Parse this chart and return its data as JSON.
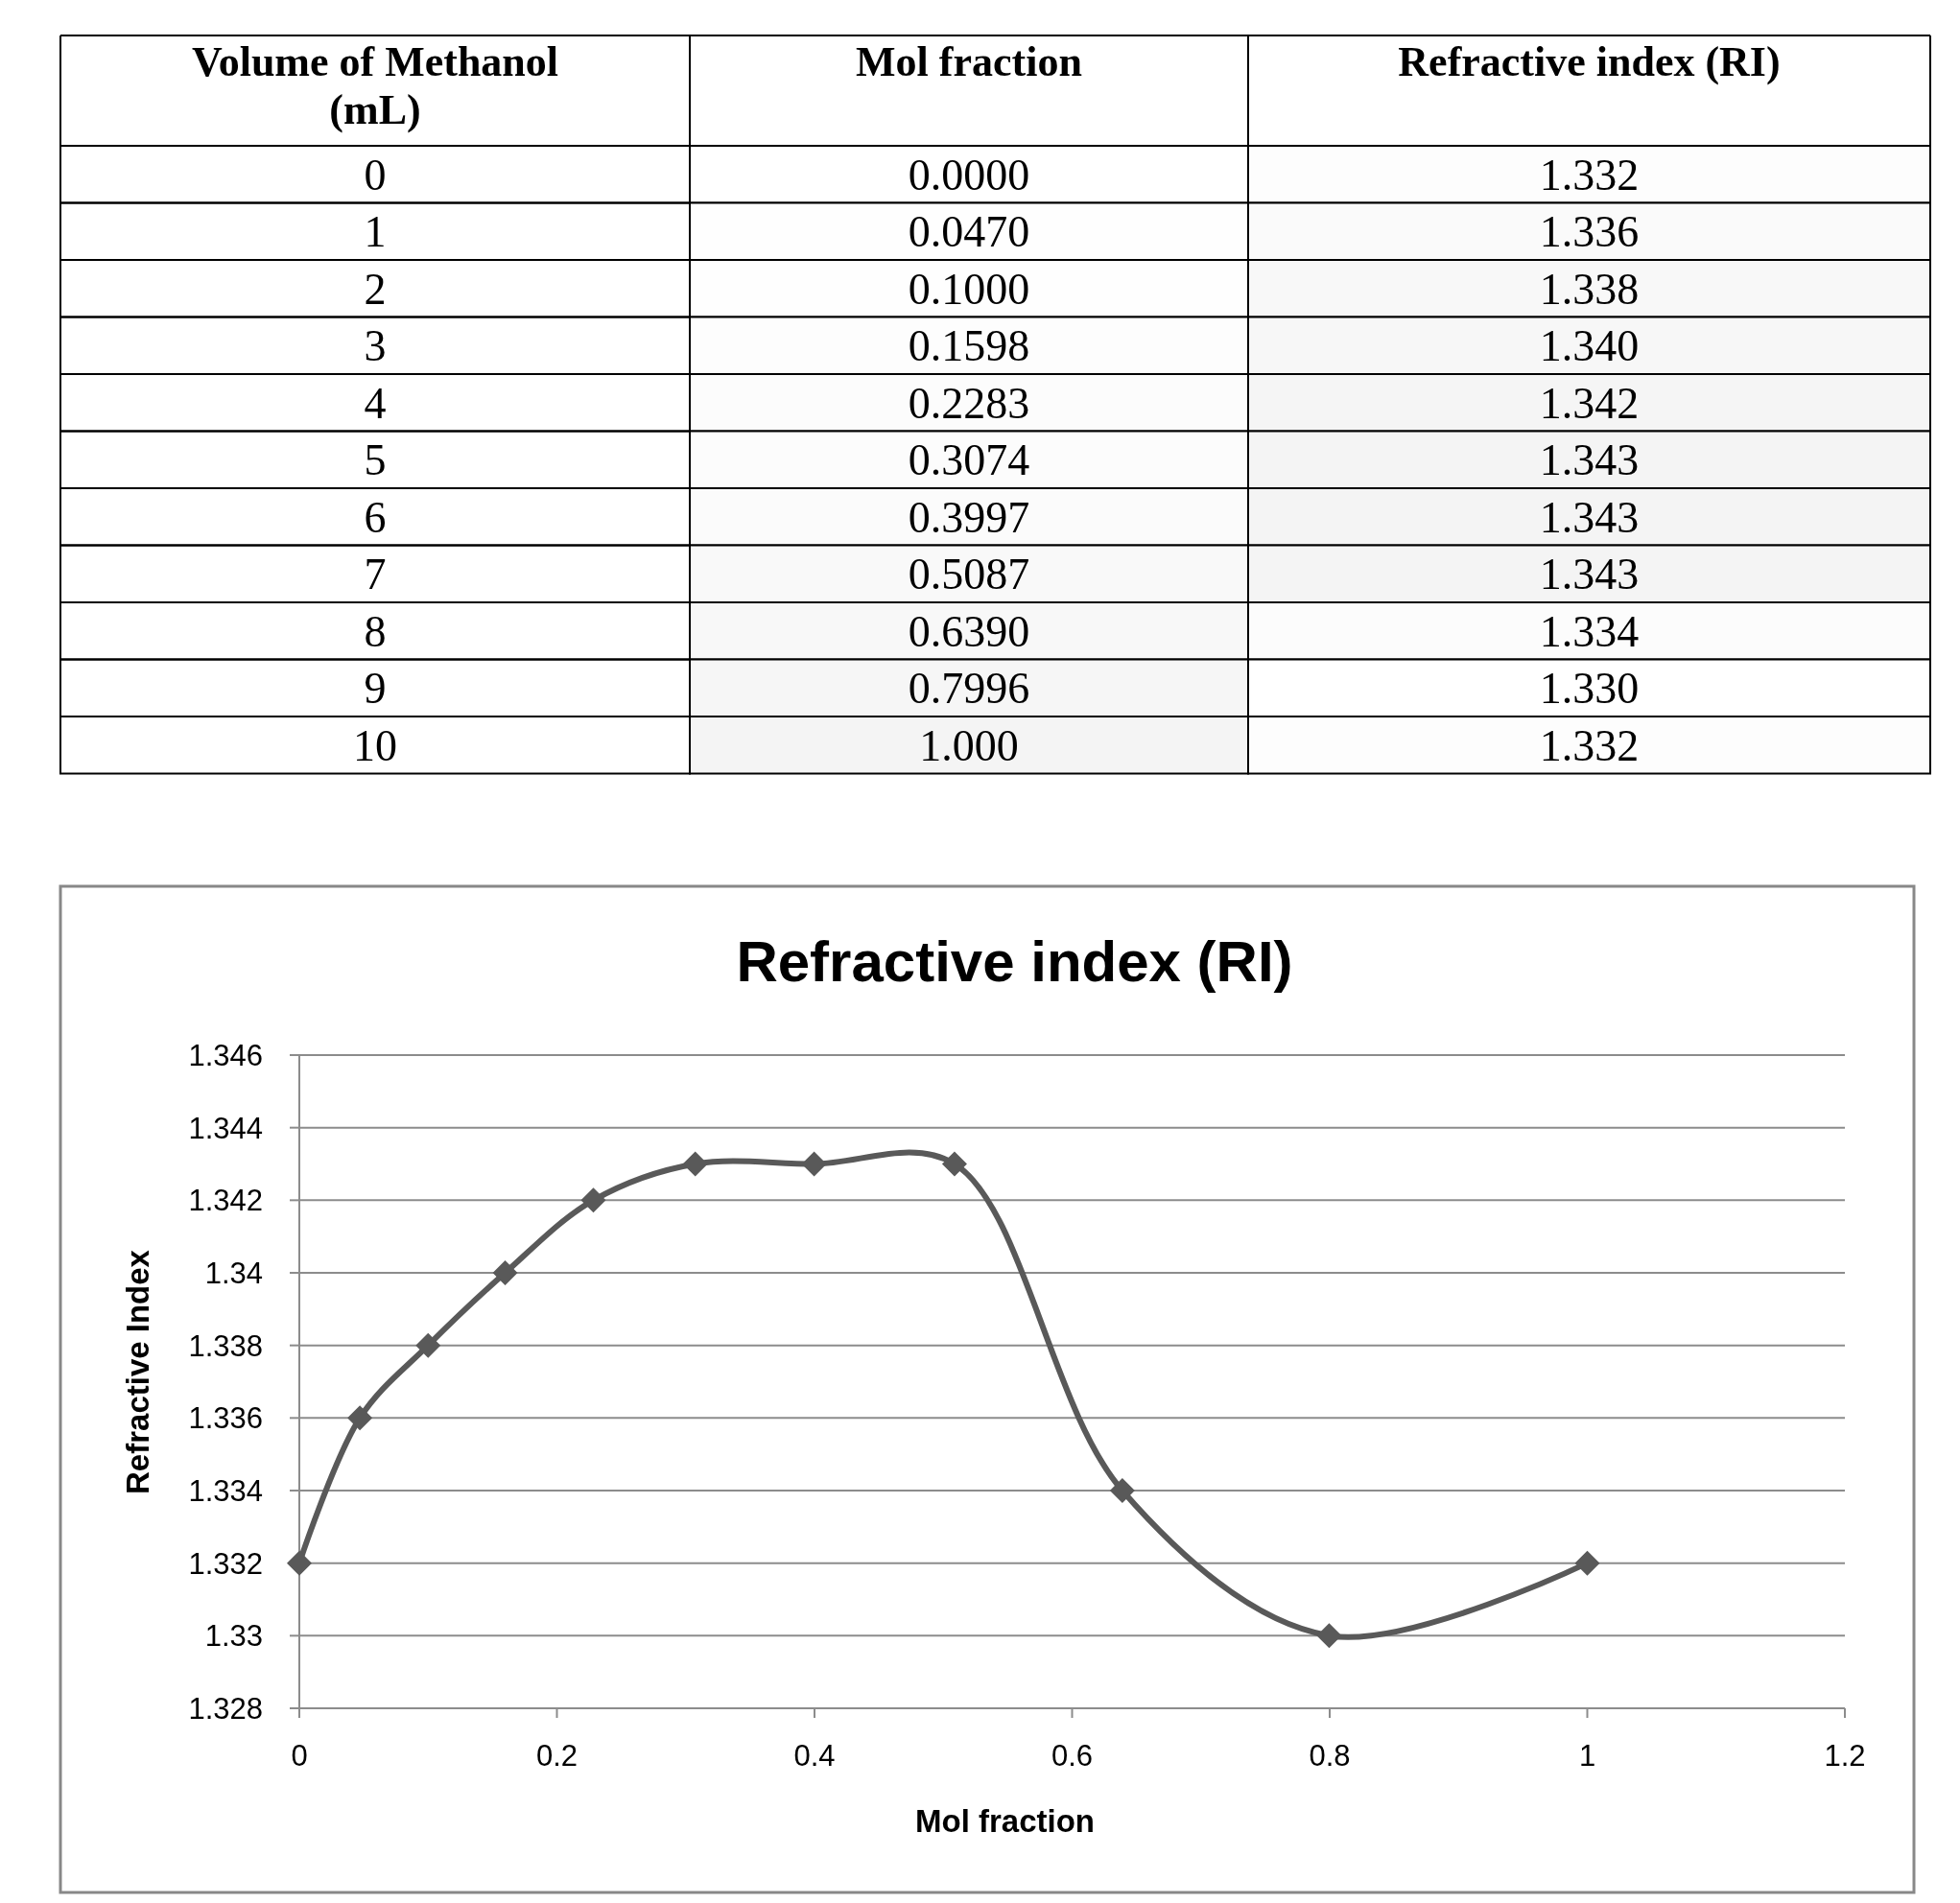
{
  "chart_data": [
    {
      "type": "heatmap",
      "ylabel": "Volume of Methanol (mL)",
      "categories": [
        "Mol fraction",
        "Refractive index (RI)"
      ],
      "y_categories": [
        "0",
        "1",
        "2",
        "3",
        "4",
        "5",
        "6",
        "7",
        "8",
        "9",
        "10"
      ],
      "cells": [
        [
          0,
          1.332
        ],
        [
          0.047,
          1.336
        ],
        [
          0.1,
          1.338
        ],
        [
          0.1598,
          1.34
        ],
        [
          0.2283,
          1.342
        ],
        [
          0.3074,
          1.343
        ],
        [
          0.3997,
          1.343
        ],
        [
          0.5087,
          1.343
        ],
        [
          0.639,
          1.334
        ],
        [
          0.7996,
          1.33
        ],
        [
          1,
          1.332
        ]
      ],
      "cell_labels": [
        [
          "0.0000",
          "1.332"
        ],
        [
          "0.0470",
          "1.336"
        ],
        [
          "0.1000",
          "1.338"
        ],
        [
          "0.1598",
          "1.340"
        ],
        [
          "0.2283",
          "1.342"
        ],
        [
          "0.3074",
          "1.343"
        ],
        [
          "0.3997",
          "1.343"
        ],
        [
          "0.5087",
          "1.343"
        ],
        [
          "0.6390",
          "1.334"
        ],
        [
          "0.7996",
          "1.330"
        ],
        [
          "1.000",
          "1.332"
        ]
      ]
    },
    {
      "type": "line",
      "title": "Refractive index (RI)",
      "xlabel": "Mol fraction",
      "ylabel": "Refractive Index",
      "x": [
        0,
        0.047,
        0.1,
        0.1598,
        0.2283,
        0.3074,
        0.3997,
        0.5087,
        0.639,
        0.7996,
        1
      ],
      "series": [
        {
          "color": "#595959",
          "values": [
            1.332,
            1.336,
            1.338,
            1.34,
            1.342,
            1.343,
            1.343,
            1.343,
            1.334,
            1.33,
            1.332
          ]
        }
      ],
      "xlim": [
        0,
        1.2
      ],
      "xticks": [
        0,
        0.2,
        0.4,
        0.6,
        0.8,
        1,
        1.2
      ],
      "ylim": [
        1.328,
        1.346
      ],
      "yticks": [
        1.328,
        1.33,
        1.332,
        1.334,
        1.336,
        1.338,
        1.34,
        1.342,
        1.344,
        1.346
      ],
      "grid": "y",
      "marker": "diamond",
      "line_style": "solid",
      "legend": false
    }
  ]
}
